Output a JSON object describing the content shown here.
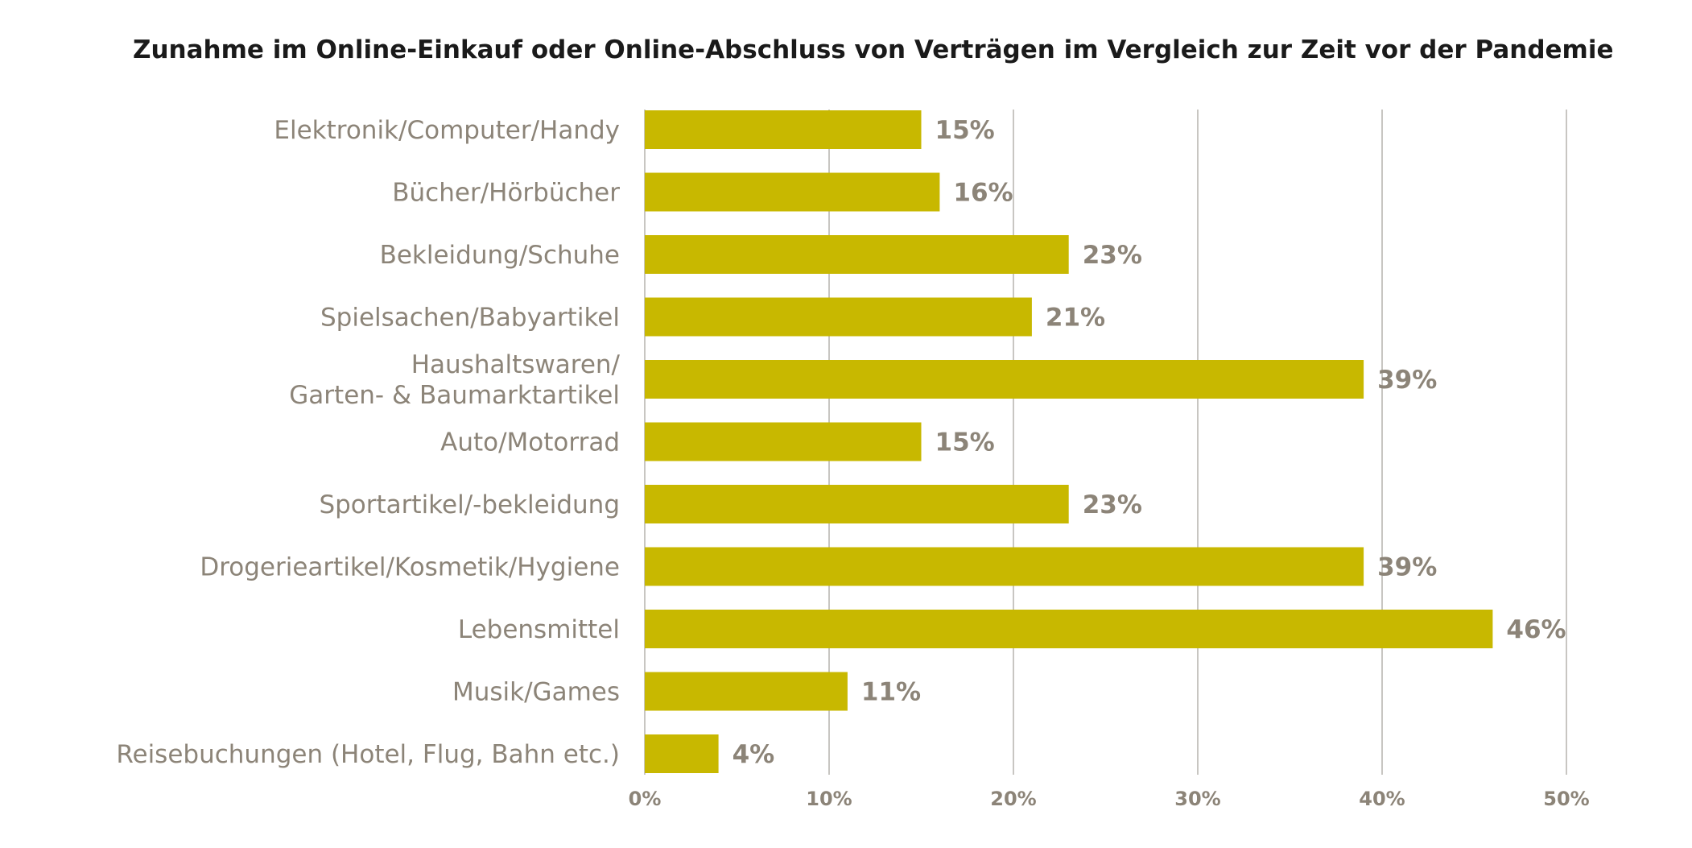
{
  "chart_data": {
    "type": "bar",
    "orientation": "horizontal",
    "title": "Zunahme im Online-Einkauf oder Online-Abschluss von Verträgen im Vergleich zur Zeit vor der Pandemie",
    "categories": [
      [
        "Elektronik/Computer/Handy"
      ],
      [
        "Bücher/Hörbücher"
      ],
      [
        "Bekleidung/Schuhe"
      ],
      [
        "Spielsachen/Babyartikel"
      ],
      [
        "Haushaltswaren/",
        "Garten- & Baumarktartikel"
      ],
      [
        "Auto/Motorrad"
      ],
      [
        "Sportartikel/-bekleidung"
      ],
      [
        "Drogerieartikel/Kosmetik/Hygiene"
      ],
      [
        "Lebensmittel"
      ],
      [
        "Musik/Games"
      ],
      [
        "Reisebuchungen (Hotel, Flug, Bahn etc.)"
      ]
    ],
    "values": [
      15,
      16,
      23,
      21,
      39,
      15,
      23,
      39,
      46,
      11,
      4
    ],
    "value_labels": [
      "15%",
      "16%",
      "23%",
      "21%",
      "39%",
      "15%",
      "23%",
      "39%",
      "46%",
      "11%",
      "4%"
    ],
    "x_ticks": [
      0,
      10,
      20,
      30,
      40,
      50
    ],
    "x_tick_labels": [
      "0%",
      "10%",
      "20%",
      "30%",
      "40%",
      "50%"
    ],
    "xlim": [
      0,
      50
    ],
    "xlabel": "",
    "ylabel": "",
    "grid": "vertical",
    "legend": "none",
    "colors": {
      "bar": "#c8b800",
      "text": "#8c8478",
      "title": "#1a1a1a",
      "grid": "#c8c6c2"
    }
  }
}
